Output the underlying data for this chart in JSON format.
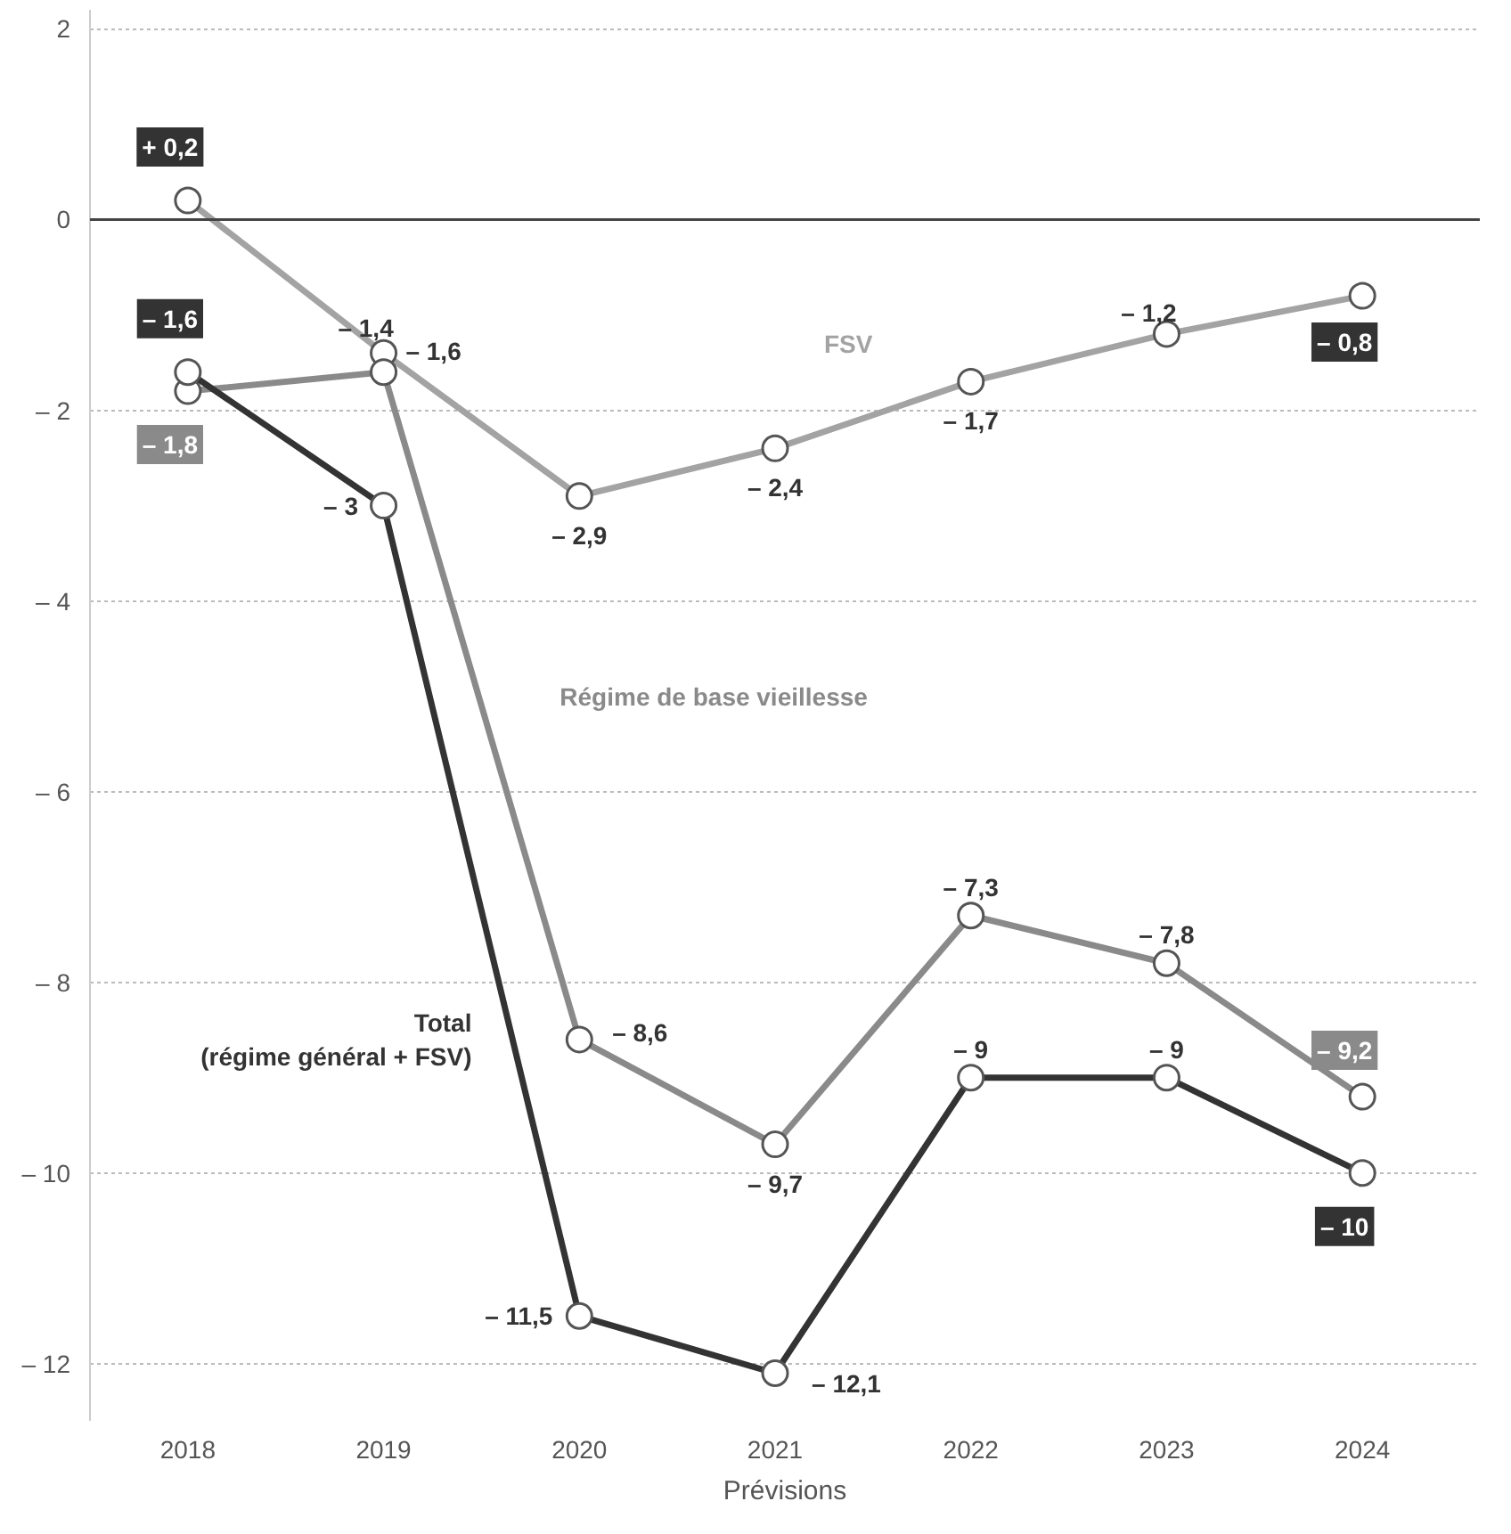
{
  "chart_data": {
    "type": "line",
    "categories": [
      "2018",
      "2019",
      "2020",
      "2021",
      "2022",
      "2023",
      "2024"
    ],
    "ylim": [
      -12.6,
      2.2
    ],
    "yticks": [
      2,
      0,
      {
        "value": -2,
        "label": "– 2"
      },
      {
        "value": -4,
        "label": "– 4"
      },
      {
        "value": -6,
        "label": "– 6"
      },
      {
        "value": -8,
        "label": "– 8"
      },
      {
        "value": -10,
        "label": "– 10"
      },
      {
        "value": -12,
        "label": "– 12"
      }
    ],
    "grid": "y",
    "marker": "circle",
    "line_style": "solid",
    "legend": false,
    "ref_lines": [
      {
        "axis": "y",
        "value": 0,
        "color": "#444444"
      }
    ],
    "series": [
      {
        "name": "FSV",
        "color": "#a3a3a3",
        "values": [
          0.2,
          -1.4,
          -2.9,
          -2.4,
          -1.7,
          -1.2,
          -0.8
        ],
        "value_labels": [
          "+ 0,2",
          "– 1,4",
          "– 2,9",
          "– 2,4",
          "– 1,7",
          "– 1,2",
          "– 0,8"
        ]
      },
      {
        "name": "Régime de base vieillesse",
        "color": "#8a8a8a",
        "values": [
          -1.8,
          -1.6,
          -8.6,
          -9.7,
          -7.3,
          -7.8,
          -9.2
        ],
        "value_labels": [
          "– 1,8",
          "– 1,6",
          "– 8,6",
          "– 9,7",
          "– 7,3",
          "– 7,8",
          "– 9,2"
        ]
      },
      {
        "name": "Total\n(régime général + FSV)",
        "color": "#333333",
        "values": [
          -1.6,
          -3,
          -11.5,
          -12.1,
          -9,
          -9,
          -10
        ],
        "value_labels": [
          "– 1,6",
          "– 3",
          "– 11,5",
          "– 12,1",
          "– 9",
          "– 9",
          "– 10"
        ]
      }
    ],
    "annotations": [
      "Prévisions"
    ]
  }
}
